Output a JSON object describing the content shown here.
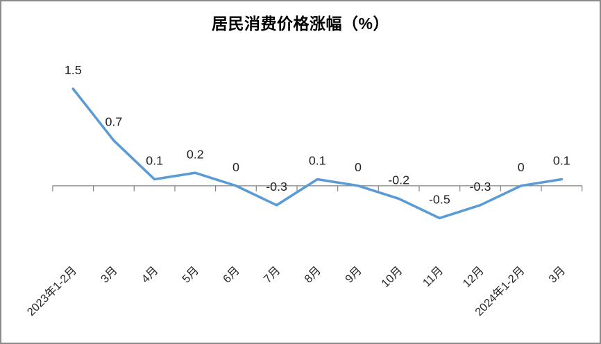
{
  "frame": {
    "background": "#FFFFFF",
    "border_color": "#8A8A8A"
  },
  "chart_data": {
    "type": "line",
    "title": "居民消费价格涨幅（%）",
    "categories": [
      "2023年1-2月",
      "3月",
      "4月",
      "5月",
      "6月",
      "7月",
      "8月",
      "9月",
      "10月",
      "11月",
      "12月",
      "2024年1-2月",
      "3月"
    ],
    "values": [
      1.5,
      0.7,
      0.1,
      0.2,
      0,
      -0.3,
      0.1,
      0,
      -0.2,
      -0.5,
      -0.3,
      0,
      0.1
    ],
    "point_labels": [
      "1.5",
      "0.7",
      "0.1",
      "0.2",
      "0",
      "-0.3",
      "0.1",
      "0",
      "-0.2",
      "-0.5",
      "-0.3",
      "0",
      "0.1"
    ],
    "xlabel": "",
    "ylabel": "",
    "ylim": [
      -1,
      2
    ],
    "grid": "off",
    "legend": "none",
    "x_label_rotation": 45,
    "line_color": "#5B9BD5",
    "axis_color": "#808080",
    "title_color": "#000000",
    "data_label_color": "#222222",
    "tick_label_color": "#262626"
  }
}
